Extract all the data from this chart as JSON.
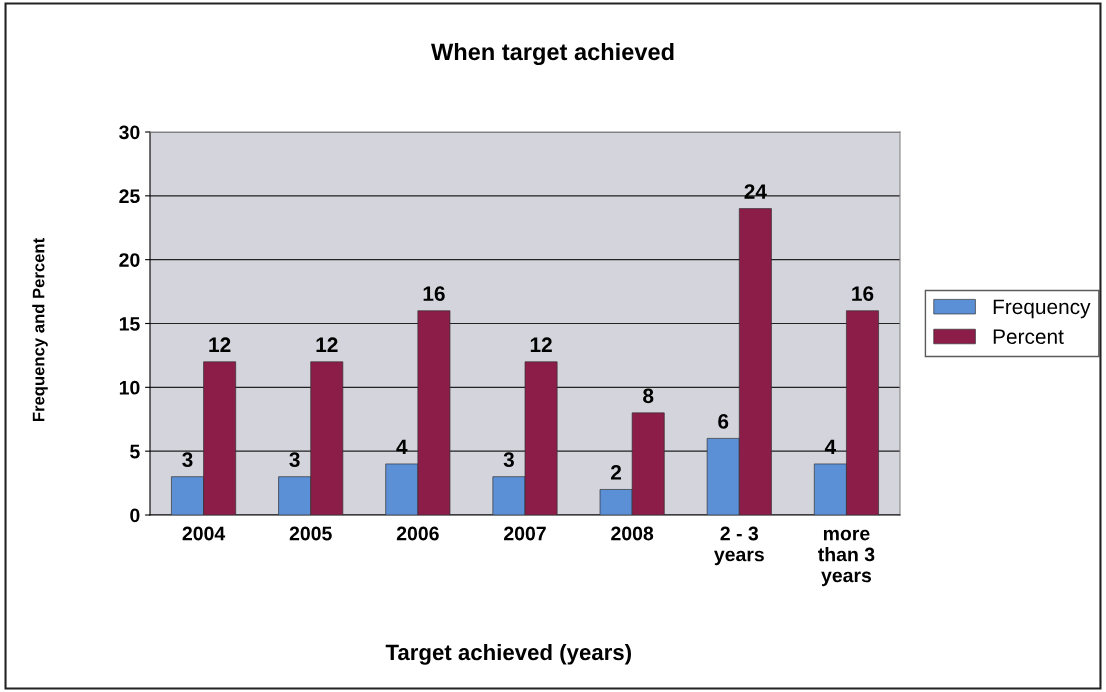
{
  "chart_data": {
    "type": "bar",
    "title": "When target achieved",
    "xlabel": "Target achieved (years)",
    "ylabel": "Frequency and Percent",
    "categories": [
      "2004",
      "2005",
      "2006",
      "2007",
      "2008",
      "2 - 3\nyears",
      "more\nthan 3\nyears"
    ],
    "series": [
      {
        "name": "Frequency",
        "color": "#5b8fd6",
        "values": [
          3,
          3,
          4,
          3,
          2,
          6,
          4
        ]
      },
      {
        "name": "Percent",
        "color": "#8c1c48",
        "values": [
          12,
          12,
          16,
          12,
          8,
          24,
          16
        ]
      }
    ],
    "ylim": [
      0,
      30
    ],
    "yticks": [
      0,
      5,
      10,
      15,
      20,
      25,
      30
    ],
    "grid": "y",
    "legend": "right",
    "data_labels": true
  }
}
